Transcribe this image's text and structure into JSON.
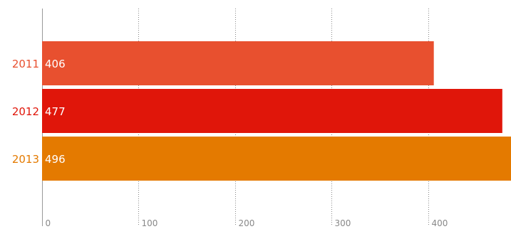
{
  "chart_data": {
    "type": "bar",
    "orientation": "horizontal",
    "categories": [
      "2011",
      "2012",
      "2013"
    ],
    "values": [
      406,
      477,
      496
    ],
    "colors": [
      "#e8502f",
      "#e0160a",
      "#e47a00"
    ],
    "category_label_colors": [
      "#e8502f",
      "#e0160a",
      "#e47a00"
    ],
    "xticks": [
      0,
      100,
      200,
      300,
      400
    ],
    "xtick_labels": [
      "0",
      "100",
      "200",
      "300",
      "400"
    ],
    "xlim": [
      0,
      486
    ],
    "grid": true,
    "grid_style": "dotted",
    "title": "",
    "xlabel": "",
    "ylabel": ""
  }
}
